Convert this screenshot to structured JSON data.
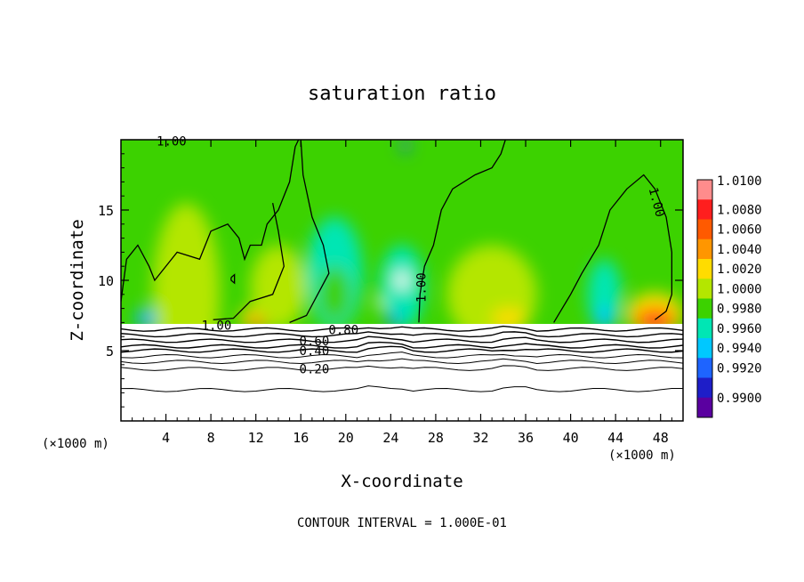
{
  "chart_data": {
    "type": "heatmap",
    "title": "saturation ratio",
    "xlabel": "X-coordinate",
    "ylabel": "Z-coordinate",
    "x_unit_left": "(×1000 m)",
    "x_unit_right": "(×1000 m)",
    "xlim": [
      0,
      50
    ],
    "ylim": [
      0,
      20
    ],
    "xticks": [
      4,
      8,
      12,
      16,
      20,
      24,
      28,
      32,
      36,
      40,
      44,
      48
    ],
    "yticks": [
      5,
      10,
      15
    ],
    "footer": "CONTOUR INTERVAL = 1.000E-01",
    "colorbar": {
      "levels": [
        "1.0100",
        "1.0080",
        "1.0060",
        "1.0040",
        "1.0020",
        "1.0000",
        "0.9980",
        "0.9960",
        "0.9940",
        "0.9920",
        "0.9900"
      ],
      "colors": [
        "#ff8c8c",
        "#ff1e1e",
        "#ff5a00",
        "#ff9600",
        "#ffdc00",
        "#b4e600",
        "#3cd200",
        "#00e6b4",
        "#00c8ff",
        "#1e64ff",
        "#1e1ec8",
        "#5a00a0"
      ]
    },
    "contour_labels": [
      {
        "text": "1.00",
        "x": 4.5,
        "z": 19.9
      },
      {
        "text": "1.00",
        "x": 8.5,
        "z": 6.8
      },
      {
        "text": "0.80",
        "x": 19.8,
        "z": 6.5
      },
      {
        "text": "0.60",
        "x": 17.2,
        "z": 5.7
      },
      {
        "text": "0.40",
        "x": 17.2,
        "z": 5.0
      },
      {
        "text": "0.20",
        "x": 17.2,
        "z": 3.7
      },
      {
        "text": "1.00",
        "x": 27.1,
        "z": 9.8
      },
      {
        "text": "1.00",
        "x": 47.3,
        "z": 15.8
      }
    ],
    "low_levels": [
      {
        "level": 0.9,
        "z": 6.5
      },
      {
        "level": 0.8,
        "z": 6.1
      },
      {
        "level": 0.7,
        "z": 5.7
      },
      {
        "level": 0.6,
        "z": 5.3
      },
      {
        "level": 0.5,
        "z": 5.0
      },
      {
        "level": 0.4,
        "z": 4.6
      },
      {
        "level": 0.3,
        "z": 4.2
      },
      {
        "level": 0.2,
        "z": 3.7
      },
      {
        "level": 0.1,
        "z": 2.2
      }
    ],
    "cloud_top_z": 6.9,
    "blobs": [
      {
        "x": 5.8,
        "z": 9.0,
        "rx": 2.0,
        "rz": 3.0,
        "c": "#ffdc00"
      },
      {
        "x": 5.8,
        "z": 8.2,
        "rx": 1.0,
        "rz": 1.6,
        "c": "#ff9600"
      },
      {
        "x": 5.8,
        "z": 9.0,
        "rx": 3.0,
        "rz": 6.5,
        "c": "#b4e600"
      },
      {
        "x": 12.5,
        "z": 7.3,
        "rx": 2.0,
        "rz": 0.8,
        "c": "#ffdc00"
      },
      {
        "x": 12.5,
        "z": 7.0,
        "rx": 1.2,
        "rz": 0.4,
        "c": "#ff5a00"
      },
      {
        "x": 14.0,
        "z": 9.5,
        "rx": 2.5,
        "rz": 3.0,
        "c": "#b4e600"
      },
      {
        "x": 19.0,
        "z": 10.5,
        "rx": 2.5,
        "rz": 4.0,
        "c": "#00e6b4"
      },
      {
        "x": 19.0,
        "z": 9.0,
        "rx": 1.5,
        "rz": 2.0,
        "c": "#3cd200"
      },
      {
        "x": 25.0,
        "z": 9.5,
        "rx": 2.0,
        "rz": 3.0,
        "c": "#00e6b4"
      },
      {
        "x": 33.0,
        "z": 9.0,
        "rx": 4.0,
        "rz": 3.5,
        "c": "#b4e600"
      },
      {
        "x": 34.5,
        "z": 7.3,
        "rx": 1.5,
        "rz": 0.7,
        "c": "#ffdc00"
      },
      {
        "x": 43.0,
        "z": 9.0,
        "rx": 1.5,
        "rz": 2.5,
        "c": "#00e6b4"
      },
      {
        "x": 43.0,
        "z": 7.3,
        "rx": 0.9,
        "rz": 0.8,
        "c": "#00c8ff"
      },
      {
        "x": 2.2,
        "z": 7.3,
        "rx": 0.9,
        "rz": 0.7,
        "c": "#00c8ff"
      },
      {
        "x": 2.2,
        "z": 7.1,
        "rx": 0.4,
        "rz": 0.4,
        "c": "#1e64ff"
      },
      {
        "x": 47.5,
        "z": 7.6,
        "rx": 2.5,
        "rz": 1.5,
        "c": "#ffdc00"
      },
      {
        "x": 47.5,
        "z": 7.2,
        "rx": 1.8,
        "rz": 0.8,
        "c": "#ff5a00"
      },
      {
        "x": 47.5,
        "z": 7.0,
        "rx": 1.0,
        "rz": 0.4,
        "c": "#ff1e1e"
      },
      {
        "x": 25.3,
        "z": 19.6,
        "rx": 0.3,
        "rz": 0.6,
        "c": "#1e64ff"
      },
      {
        "x": 25.0,
        "z": 10.0,
        "rx": 0.6,
        "rz": 0.6,
        "c": "#ffffff"
      },
      {
        "x": 23.0,
        "z": 8.4,
        "rx": 0.4,
        "rz": 0.3,
        "c": "#ffffff"
      },
      {
        "x": 24.2,
        "z": 7.2,
        "rx": 0.6,
        "rz": 0.4,
        "c": "#1e64ff"
      }
    ],
    "one_contours": [
      {
        "name": "contour-line-1-00-left",
        "points": [
          [
            0,
            8.5
          ],
          [
            0.5,
            11.5
          ],
          [
            1.5,
            12.5
          ],
          [
            2.5,
            11.0
          ],
          [
            3.0,
            10.0
          ],
          [
            5.0,
            12.0
          ],
          [
            7.0,
            11.5
          ],
          [
            8.0,
            13.5
          ],
          [
            9.5,
            14.0
          ],
          [
            10.5,
            13.0
          ],
          [
            11.0,
            11.5
          ],
          [
            11.5,
            12.5
          ],
          [
            12.5,
            12.5
          ],
          [
            13.0,
            14.0
          ],
          [
            14.0,
            15.0
          ],
          [
            15.0,
            17.0
          ],
          [
            15.5,
            19.5
          ],
          [
            15.8,
            20
          ]
        ]
      },
      {
        "name": "contour-line-1-00-lower-left",
        "points": [
          [
            8.2,
            7.2
          ],
          [
            10.0,
            7.3
          ],
          [
            11.5,
            8.5
          ],
          [
            13.5,
            9.0
          ],
          [
            14.5,
            11.0
          ],
          [
            14.0,
            13.5
          ],
          [
            13.5,
            15.5
          ]
        ]
      },
      {
        "name": "contour-line-1-00-right-lower",
        "points": [
          [
            15.0,
            7.0
          ],
          [
            16.5,
            7.5
          ],
          [
            17.5,
            9.0
          ],
          [
            18.5,
            10.5
          ],
          [
            18.0,
            12.5
          ],
          [
            17.0,
            14.5
          ],
          [
            16.2,
            17.5
          ],
          [
            16.0,
            20
          ]
        ]
      },
      {
        "name": "contour-line-1-00-middle",
        "points": [
          [
            26.5,
            7.0
          ],
          [
            26.6,
            9.0
          ],
          [
            27.0,
            11.0
          ],
          [
            27.8,
            12.5
          ],
          [
            28.5,
            15.0
          ],
          [
            29.5,
            16.5
          ],
          [
            31.5,
            17.5
          ],
          [
            33.0,
            18.0
          ],
          [
            33.8,
            19.0
          ],
          [
            34.2,
            20
          ]
        ]
      },
      {
        "name": "contour-line-1-00-right",
        "points": [
          [
            38.5,
            7.0
          ],
          [
            40.0,
            9.0
          ],
          [
            41.0,
            10.5
          ],
          [
            42.5,
            12.5
          ],
          [
            43.5,
            15.0
          ],
          [
            45.0,
            16.5
          ],
          [
            46.5,
            17.5
          ],
          [
            47.5,
            16.5
          ],
          [
            48.5,
            14.5
          ],
          [
            49.0,
            12.0
          ],
          [
            49.0,
            9.0
          ],
          [
            48.5,
            7.8
          ],
          [
            47.5,
            7.2
          ]
        ]
      },
      {
        "name": "contour-line-1-00-small-loop",
        "points": [
          [
            9.8,
            10.2
          ],
          [
            10.1,
            10.4
          ],
          [
            10.1,
            9.8
          ],
          [
            9.8,
            10.0
          ],
          [
            9.8,
            10.2
          ]
        ]
      }
    ]
  }
}
